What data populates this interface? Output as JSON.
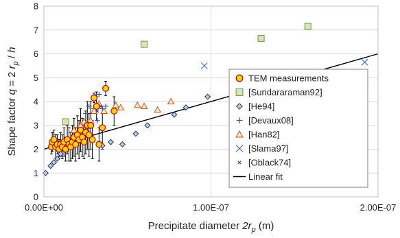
{
  "chart_data": {
    "type": "scatter",
    "title": "",
    "xlabel": {
      "prefix": "Precipitate diameter ",
      "var": "2r",
      "sub": "p",
      "suffix": " (m)"
    },
    "ylabel": {
      "prefix": "Shape factor ",
      "var": "q",
      "eq": " = 2 ",
      "var2": "r",
      "sub": "p",
      "div": " / ",
      "var3": "h"
    },
    "xlim": [
      0,
      2e-07
    ],
    "ylim": [
      0,
      8
    ],
    "xticks": [
      0,
      1e-07,
      2e-07
    ],
    "xtick_labels": [
      "0.00E+00",
      "1.00E-07",
      "2.00E-07"
    ],
    "yticks": [
      0,
      1,
      2,
      3,
      4,
      5,
      6,
      7,
      8
    ],
    "ytick_labels": [
      "0",
      "1",
      "2",
      "3",
      "4",
      "5",
      "6",
      "7",
      "8"
    ],
    "grid": {
      "horizontal": true,
      "vertical": true
    },
    "legend_position": "right",
    "series": [
      {
        "name": "TEM measurements",
        "marker": "circle",
        "color": "#FFD200",
        "stroke": "#C00000",
        "points": [
          [
            4.5e-09,
            2.1,
            0.3
          ],
          [
            5e-09,
            2.3,
            0.4
          ],
          [
            6e-09,
            2.4,
            0.4
          ],
          [
            7e-09,
            2.1,
            0.5
          ],
          [
            8e-09,
            2.2,
            0.4
          ],
          [
            9e-09,
            2.0,
            0.4
          ],
          [
            1e-08,
            2.2,
            0.5
          ],
          [
            1.1e-08,
            2.1,
            0.5
          ],
          [
            1.2e-08,
            2.3,
            0.6
          ],
          [
            1.3e-08,
            2.0,
            0.5
          ],
          [
            1.4e-08,
            2.4,
            0.6
          ],
          [
            1.5e-08,
            2.2,
            0.7
          ],
          [
            1.6e-08,
            2.1,
            0.6
          ],
          [
            1.7e-08,
            2.3,
            0.7
          ],
          [
            1.8e-08,
            2.5,
            0.8
          ],
          [
            1.9e-08,
            2.2,
            0.7
          ],
          [
            2e-08,
            2.6,
            0.8
          ],
          [
            2.1e-08,
            2.4,
            0.8
          ],
          [
            2.2e-08,
            2.8,
            0.9
          ],
          [
            2.3e-08,
            2.5,
            0.8
          ],
          [
            2.4e-08,
            2.3,
            0.7
          ],
          [
            2.5e-08,
            2.7,
            0.9
          ],
          [
            2.6e-08,
            3.0,
            1.0
          ],
          [
            2.7e-08,
            2.6,
            0.9
          ],
          [
            2.8e-08,
            3.0,
            1.0
          ],
          [
            2.9e-08,
            2.4,
            0.8
          ],
          [
            3e-08,
            4.15,
            0.2
          ],
          [
            3.15e-08,
            3.8,
            0.6
          ],
          [
            3.3e-08,
            2.2,
            0.7
          ],
          [
            3.5e-08,
            2.9,
            0.9
          ],
          [
            3.7e-08,
            4.55,
            0.3
          ],
          [
            4.2e-08,
            3.6,
            0.6
          ]
        ]
      },
      {
        "name": "[Sundararaman92]",
        "marker": "square",
        "color": "#D8E4BC",
        "stroke": "#76933C",
        "points": [
          [
            1.3e-08,
            3.15
          ],
          [
            6e-08,
            6.4
          ],
          [
            1.3e-07,
            6.65
          ],
          [
            1.58e-07,
            7.15
          ]
        ]
      },
      {
        "name": "[He94]",
        "marker": "diamond",
        "color": "#B8CCE4",
        "stroke": "#1F3864",
        "points": [
          [
            1e-09,
            1.0
          ],
          [
            4e-09,
            1.3
          ],
          [
            6e-09,
            1.45
          ],
          [
            8e-09,
            1.6
          ],
          [
            1e-08,
            1.8
          ],
          [
            1.2e-08,
            2.0
          ],
          [
            1.5e-08,
            2.2
          ],
          [
            1.8e-08,
            2.4
          ],
          [
            2.2e-08,
            2.6
          ],
          [
            3.5e-08,
            2.15
          ],
          [
            4e-08,
            2.3
          ],
          [
            4.7e-08,
            2.2
          ],
          [
            5.5e-08,
            2.65
          ],
          [
            6.2e-08,
            3.0
          ],
          [
            7.8e-08,
            3.45
          ],
          [
            8.5e-08,
            3.75
          ],
          [
            9.8e-08,
            4.2
          ]
        ]
      },
      {
        "name": "[Devaux08]",
        "marker": "plus",
        "color": "#2F5597",
        "points": [
          [
            1.5e-08,
            2.2
          ],
          [
            2e-08,
            2.7
          ],
          [
            2.3e-08,
            2.6
          ],
          [
            2.5e-08,
            3.5
          ],
          [
            2.6e-08,
            3.1
          ],
          [
            2.8e-08,
            2.9
          ],
          [
            3e-08,
            3.7
          ],
          [
            3.1e-08,
            4.2
          ],
          [
            3.3e-08,
            4.3
          ],
          [
            3.5e-08,
            3.7
          ],
          [
            3.7e-08,
            3.8
          ],
          [
            2.7e-08,
            3.8
          ],
          [
            3.2e-08,
            3.2
          ]
        ]
      },
      {
        "name": "[Han82]",
        "marker": "triangle",
        "color": "#FBE5D6",
        "stroke": "#C55A11",
        "points": [
          [
            1.8e-08,
            2.8
          ],
          [
            2e-08,
            2.5
          ],
          [
            2.2e-08,
            3.0
          ],
          [
            2.4e-08,
            3.15
          ],
          [
            2.8e-08,
            3.2
          ],
          [
            3e-08,
            3.6
          ],
          [
            3.3e-08,
            3.9
          ],
          [
            3.6e-08,
            3.6
          ],
          [
            4.3e-08,
            3.85
          ],
          [
            4.6e-08,
            3.75
          ],
          [
            5.6e-08,
            3.85
          ],
          [
            6e-08,
            3.8
          ],
          [
            6.8e-08,
            3.65
          ],
          [
            7.6e-08,
            4.0
          ]
        ]
      },
      {
        "name": "[Slama97]",
        "marker": "x",
        "color": "#4472C4",
        "points": [
          [
            9.6e-08,
            5.5
          ],
          [
            1.92e-07,
            5.65
          ]
        ]
      },
      {
        "name": "[Oblack74]",
        "marker": "smallx",
        "color": "#2F5597",
        "points": [
          [
            3.2e-08,
            3.6
          ],
          [
            3.4e-08,
            3.8
          ]
        ]
      },
      {
        "name": "Linear fit",
        "marker": "line",
        "color": "#000000",
        "points": [
          [
            0,
            2.0
          ],
          [
            2e-07,
            6.0
          ]
        ]
      }
    ]
  }
}
